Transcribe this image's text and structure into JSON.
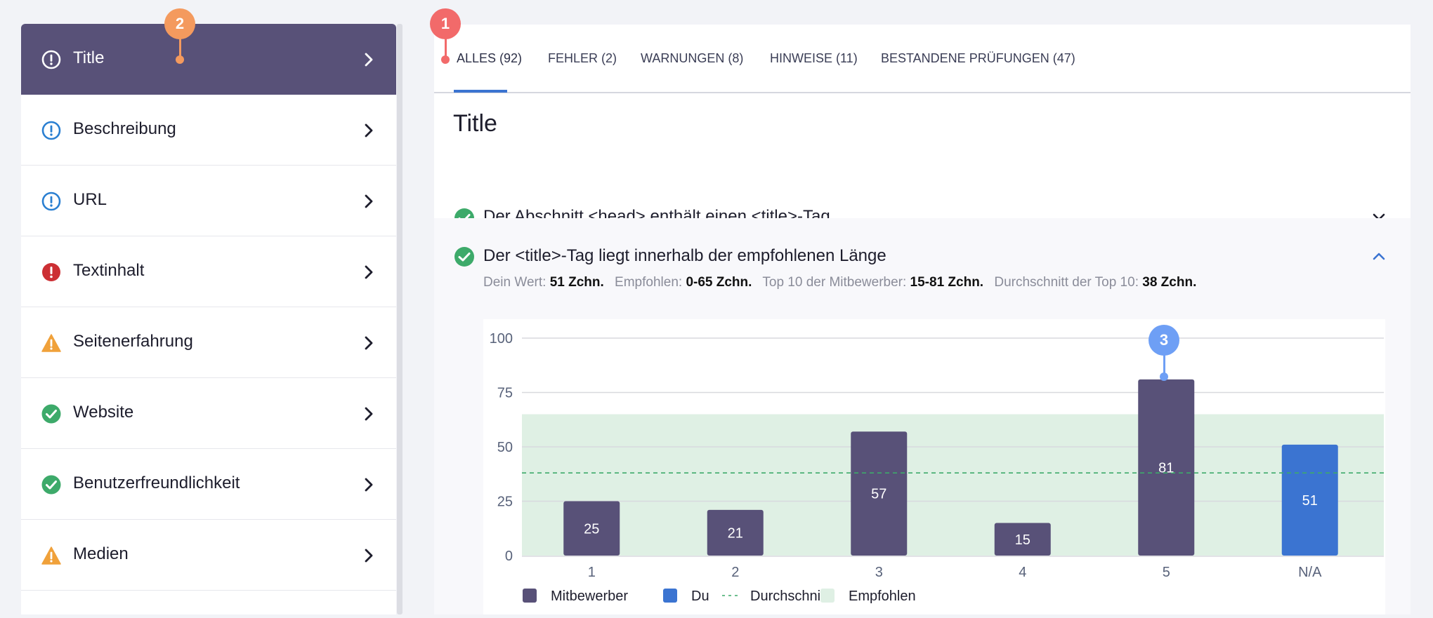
{
  "sidebar": {
    "items": [
      {
        "label": "Title",
        "icon": "info-circle-icon",
        "status": "info"
      },
      {
        "label": "Beschreibung",
        "icon": "info-circle-icon",
        "status": "info"
      },
      {
        "label": "URL",
        "icon": "info-circle-icon",
        "status": "info"
      },
      {
        "label": "Textinhalt",
        "icon": "error-icon",
        "status": "error"
      },
      {
        "label": "Seitenerfahrung",
        "icon": "warning-icon",
        "status": "warning"
      },
      {
        "label": "Website",
        "icon": "check-icon",
        "status": "ok"
      },
      {
        "label": "Benutzerfreundlichkeit",
        "icon": "check-icon",
        "status": "ok"
      },
      {
        "label": "Medien",
        "icon": "warning-icon",
        "status": "warning"
      }
    ]
  },
  "tabs": [
    {
      "label": "ALLES (92)",
      "active": true
    },
    {
      "label": "FEHLER (2)"
    },
    {
      "label": "WARNUNGEN (8)"
    },
    {
      "label": "HINWEISE (11)"
    },
    {
      "label": "BESTANDENE PRÜFUNGEN (47)"
    }
  ],
  "section": {
    "title": "Title",
    "checks": [
      {
        "text": "Der Abschnitt <head> enthält einen <title>-Tag",
        "expanded": false
      },
      {
        "text": "Der <title>-Tag liegt innerhalb der empfohlenen Länge",
        "expanded": true
      }
    ],
    "stats": {
      "your_value_label": "Dein Wert:",
      "your_value": "51 Zchn.",
      "recommended_label": "Empfohlen:",
      "recommended": "0-65 Zchn.",
      "top10_label": "Top 10 der Mitbewerber:",
      "top10": "15-81 Zchn.",
      "avg_label": "Durchschnitt der Top 10:",
      "avg": "38 Zchn."
    }
  },
  "badges": [
    "1",
    "2",
    "3"
  ],
  "colors": {
    "accent": "#585178",
    "blue": "#3b74d1",
    "ok": "#3daa6a",
    "error": "#cc2f34",
    "warning": "#f0a13a",
    "info": "#2a7fd1",
    "recommended_band": "#dff0e4"
  },
  "chart_data": {
    "type": "bar",
    "categories": [
      "1",
      "2",
      "3",
      "4",
      "5",
      "N/A"
    ],
    "series": [
      {
        "name": "Mitbewerber",
        "values": [
          25,
          21,
          57,
          15,
          81,
          null
        ],
        "color": "#585178"
      },
      {
        "name": "Du",
        "values": [
          null,
          null,
          null,
          null,
          null,
          51
        ],
        "color": "#3b74d1"
      }
    ],
    "reference_lines": [
      {
        "name": "Durchschnitt",
        "value": 38,
        "style": "dashed",
        "color": "#3daa6a"
      }
    ],
    "bands": [
      {
        "name": "Empfohlen",
        "from": 0,
        "to": 65,
        "color": "#dff0e4"
      }
    ],
    "ylim": [
      0,
      100
    ],
    "yticks": [
      0,
      25,
      50,
      75,
      100
    ],
    "grid": true,
    "legend_position": "bottom-left",
    "legend": [
      "Mitbewerber",
      "Du",
      "Durchschnitt",
      "Empfohlen"
    ]
  }
}
